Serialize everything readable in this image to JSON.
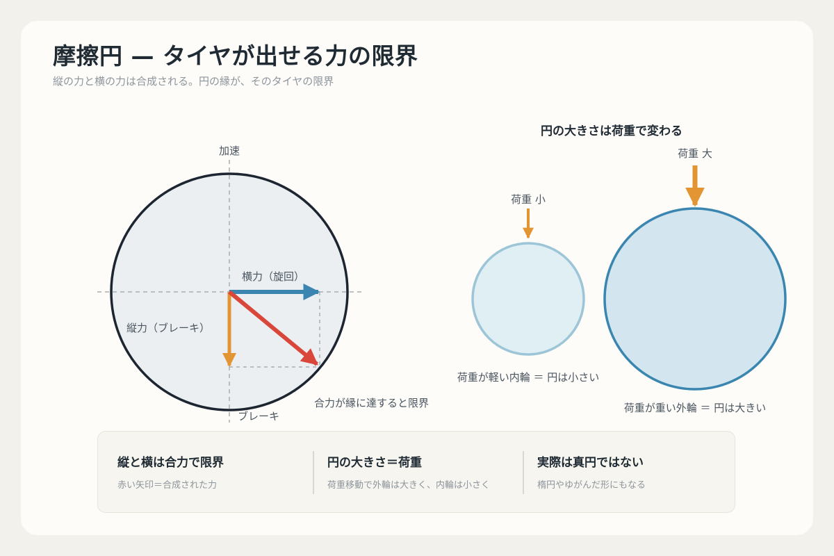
{
  "title": "摩擦円 — タイヤが出せる力の限界",
  "subtitle": "縦の力と横の力は合成される。円の縁が、そのタイヤの限界",
  "left_diagram": {
    "label_top": "加速",
    "label_bottom": "ブレーキ",
    "label_lateral": "横力（旋回）",
    "label_longitudinal": "縦力（ブレーキ）",
    "label_resultant": "合力が縁に達すると限界"
  },
  "right_diagram": {
    "heading": "円の大きさは荷重で変わる",
    "small_load_label": "荷重 小",
    "large_load_label": "荷重 大",
    "small_caption": "荷重が軽い内輪 ＝ 円は小さい",
    "large_caption": "荷重が重い外輪 ＝ 円は大きい"
  },
  "summary": [
    {
      "heading": "縦と横は合力で限界",
      "text": "赤い矢印＝合成された力"
    },
    {
      "heading": "円の大きさ＝荷重",
      "text": "荷重移動で外輪は大きく、内輪は小さく"
    },
    {
      "heading": "実際は真円ではない",
      "text": "楕円やゆがんだ形にもなる"
    }
  ],
  "colors": {
    "lateral_arrow": "#3a86b0",
    "longitudinal_arrow": "#e39534",
    "resultant_arrow": "#d9473b",
    "friction_circle_fill": "#eceff1",
    "friction_circle_stroke": "#1c2530",
    "small_circle_fill": "#dfeff3",
    "small_circle_stroke": "#9dc5d8",
    "large_circle_fill": "#d3e5ef",
    "large_circle_stroke": "#3a86b0"
  }
}
